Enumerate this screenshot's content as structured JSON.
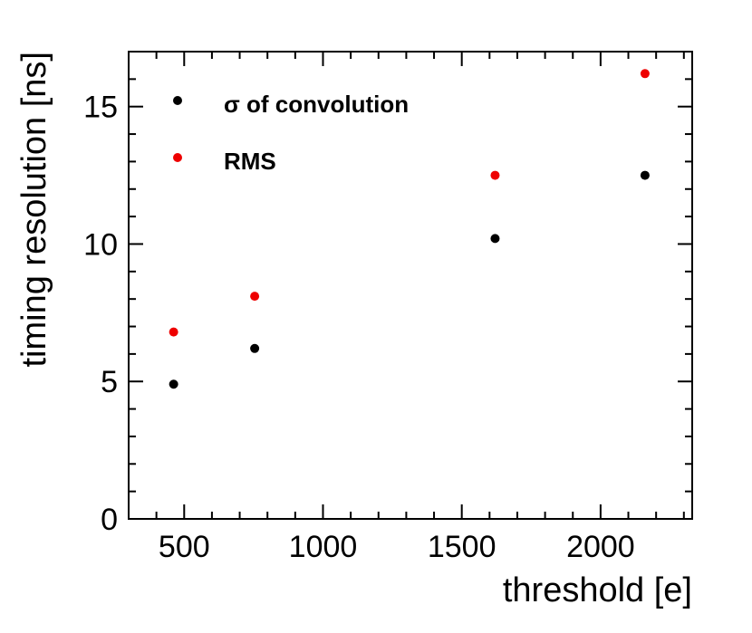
{
  "chart_data": {
    "type": "scatter",
    "title": "",
    "xlabel": "threshold [e]",
    "ylabel": "timing resolution [ns]",
    "xlim": [
      300,
      2330
    ],
    "ylim": [
      0,
      17
    ],
    "x_ticks": [
      500,
      1000,
      1500,
      2000
    ],
    "y_ticks": [
      0,
      5,
      10,
      15
    ],
    "x_tick_labels": [
      "500",
      "1000",
      "1500",
      "2000"
    ],
    "y_tick_labels": [
      "0",
      "5",
      "10",
      "15"
    ],
    "grid": false,
    "legend_position": "top-left",
    "series": [
      {
        "name": "σ of convolution",
        "color": "#000000",
        "x": [
          462,
          754,
          1620,
          2160
        ],
        "y": [
          4.9,
          6.2,
          10.2,
          12.5
        ]
      },
      {
        "name": "RMS",
        "color": "#ee0000",
        "x": [
          462,
          754,
          1620,
          2160
        ],
        "y": [
          6.8,
          8.1,
          12.5,
          16.2
        ]
      }
    ]
  }
}
